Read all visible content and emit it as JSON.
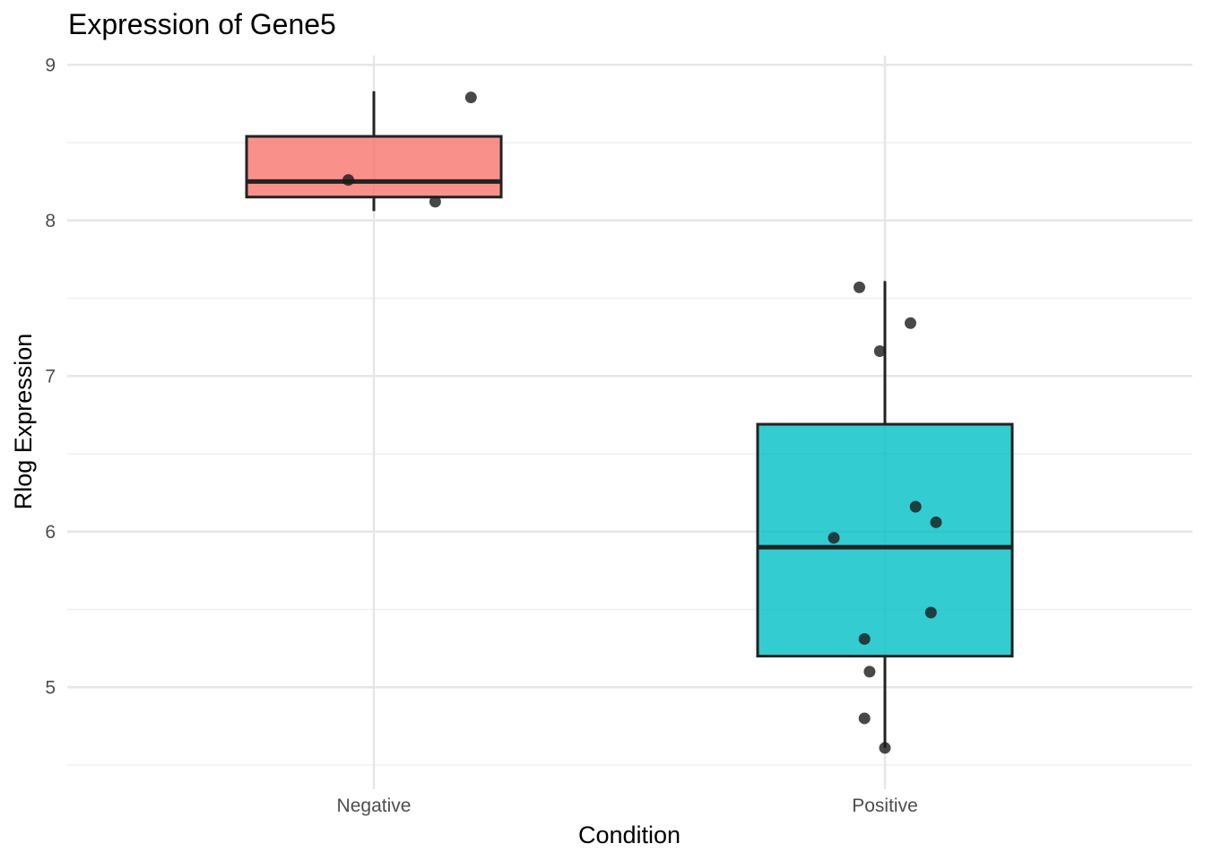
{
  "chart_data": {
    "type": "box",
    "title": "Expression of Gene5",
    "xlabel": "Condition",
    "ylabel": "Rlog Expression",
    "categories": [
      "Negative",
      "Positive"
    ],
    "ylim": [
      4.5,
      9.05
    ],
    "yticks": [
      5,
      6,
      7,
      8,
      9
    ],
    "yminor": [
      4.5,
      5.5,
      6.5,
      7.5,
      8.5
    ],
    "boxes": [
      {
        "category": "Negative",
        "color": "#F8766D",
        "min": 8.06,
        "q1": 8.15,
        "median": 8.25,
        "q3": 8.54,
        "max": 8.83
      },
      {
        "category": "Positive",
        "color": "#00BFC4",
        "min": 4.61,
        "q1": 5.2,
        "median": 5.9,
        "q3": 6.69,
        "max": 7.61
      }
    ],
    "points": [
      {
        "category": "Negative",
        "jitter": 0.19,
        "y": 8.79
      },
      {
        "category": "Negative",
        "jitter": -0.05,
        "y": 8.26
      },
      {
        "category": "Negative",
        "jitter": 0.12,
        "y": 8.12
      },
      {
        "category": "Positive",
        "jitter": -0.05,
        "y": 7.57
      },
      {
        "category": "Positive",
        "jitter": 0.05,
        "y": 7.34
      },
      {
        "category": "Positive",
        "jitter": -0.01,
        "y": 7.16
      },
      {
        "category": "Positive",
        "jitter": 0.06,
        "y": 6.16
      },
      {
        "category": "Positive",
        "jitter": 0.1,
        "y": 6.06
      },
      {
        "category": "Positive",
        "jitter": -0.1,
        "y": 5.96
      },
      {
        "category": "Positive",
        "jitter": 0.09,
        "y": 5.48
      },
      {
        "category": "Positive",
        "jitter": -0.04,
        "y": 5.31
      },
      {
        "category": "Positive",
        "jitter": -0.03,
        "y": 5.1
      },
      {
        "category": "Positive",
        "jitter": -0.04,
        "y": 4.8
      },
      {
        "category": "Positive",
        "jitter": 0.0,
        "y": 4.61
      }
    ]
  }
}
